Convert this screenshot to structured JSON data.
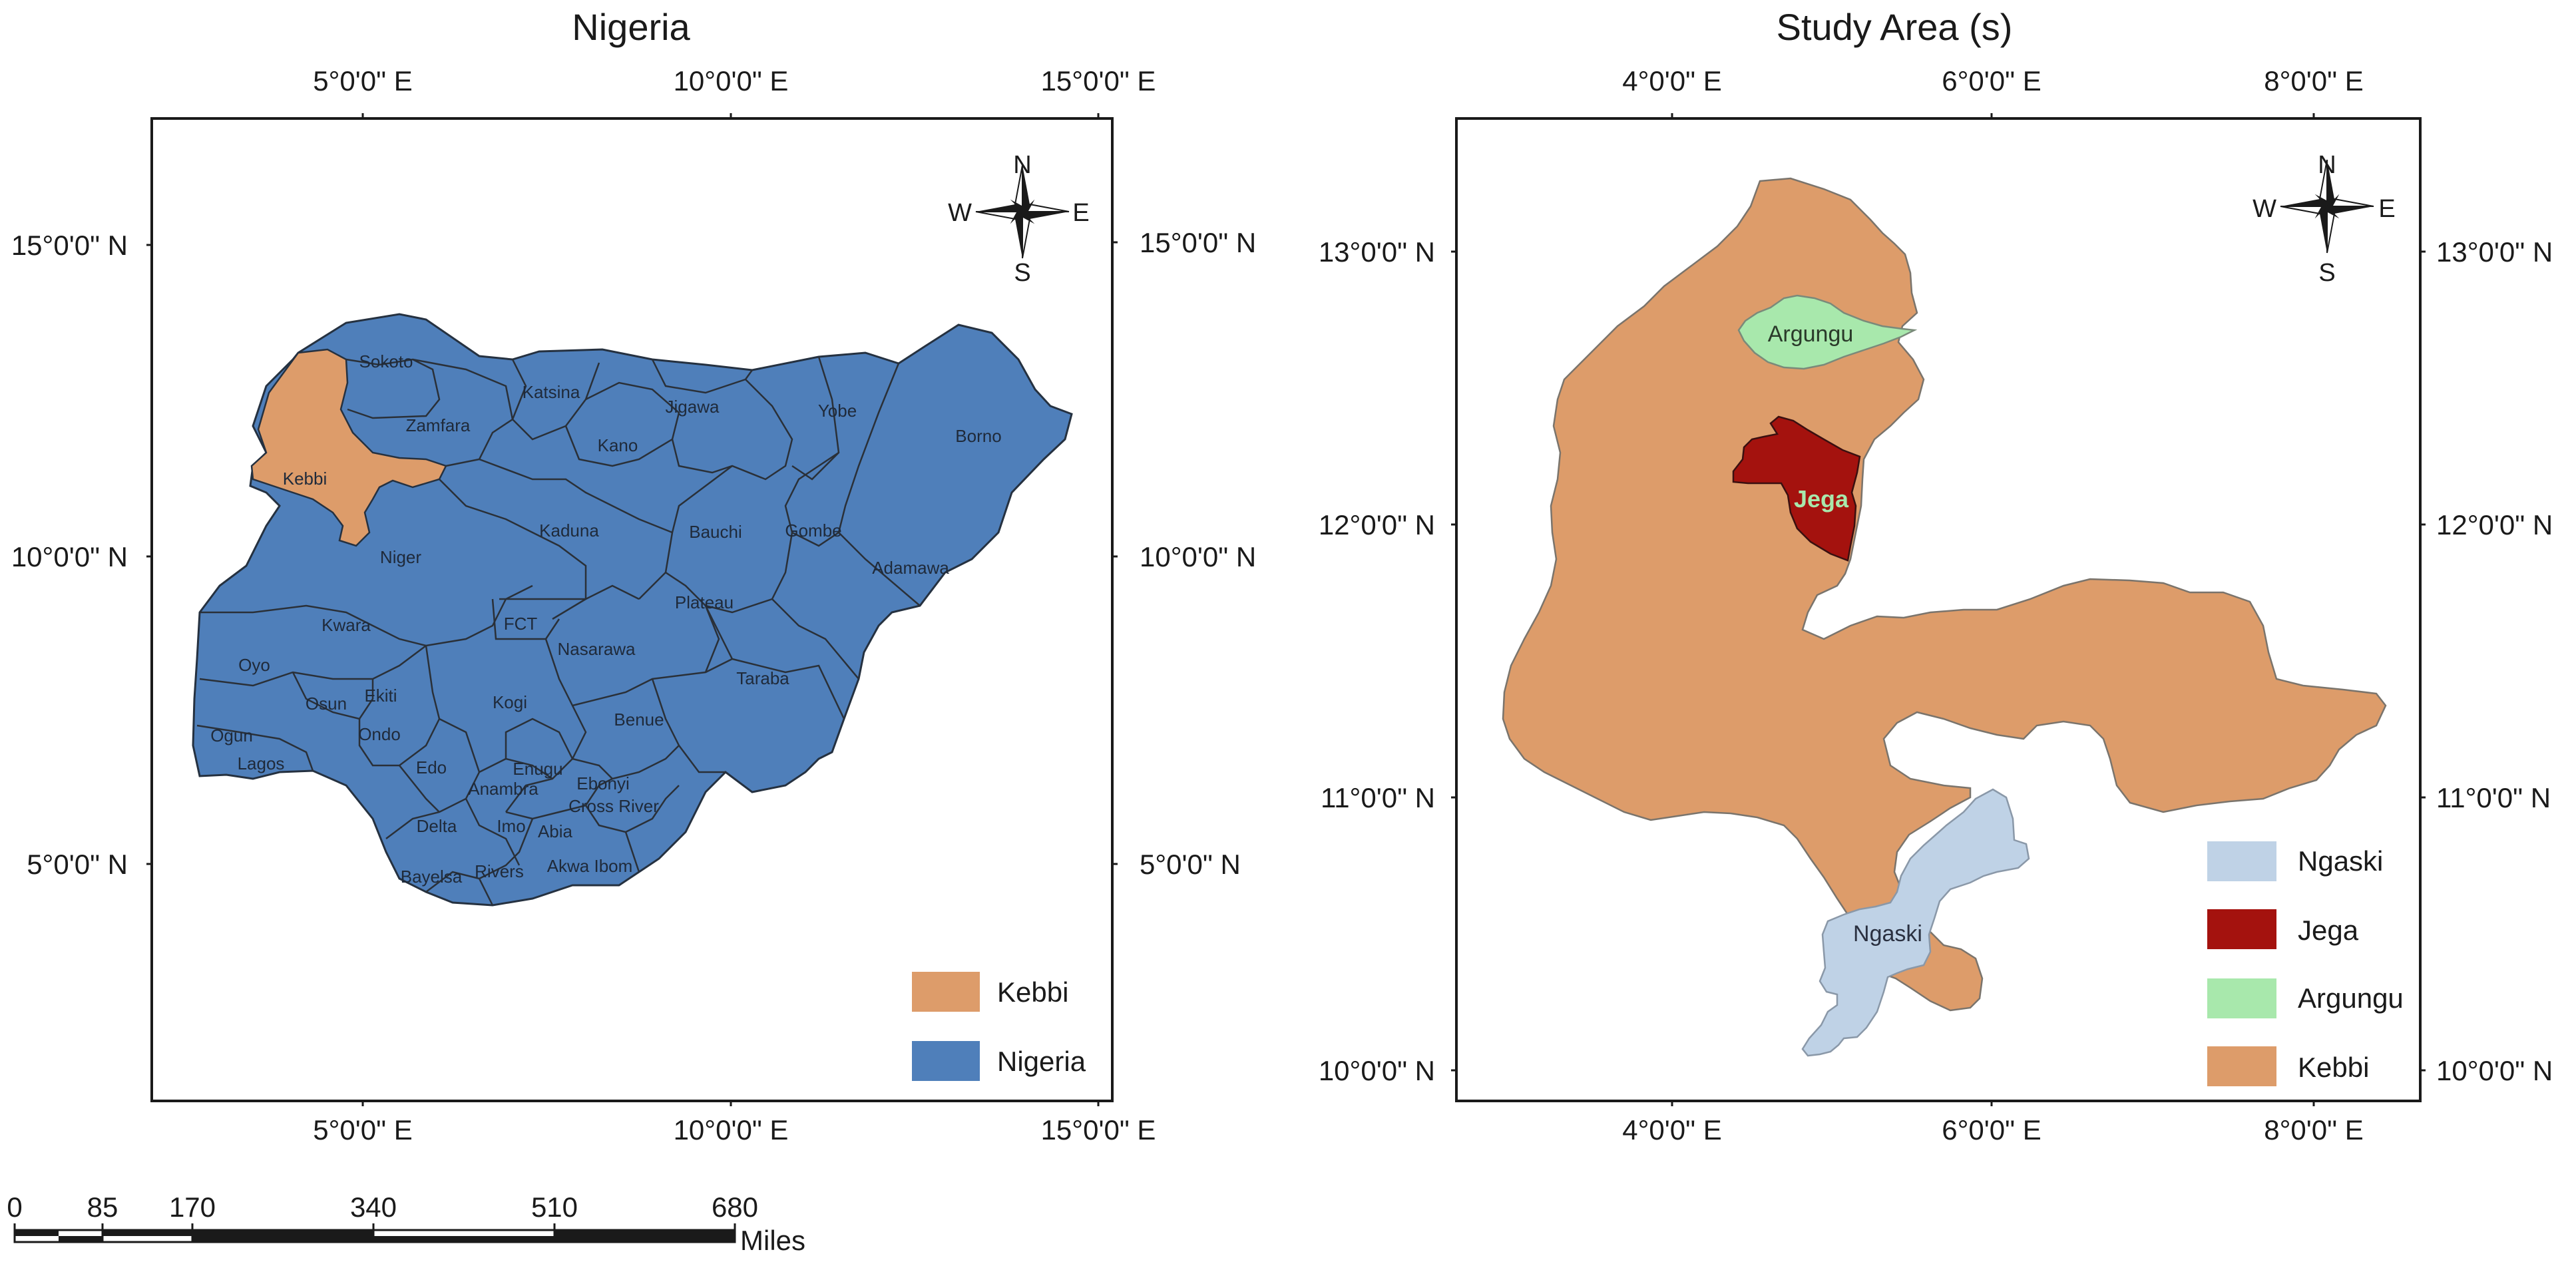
{
  "left_map": {
    "title": "Nigeria",
    "top_ticks": [
      "5°0'0\" E",
      "10°0'0\" E",
      "15°0'0\" E"
    ],
    "bottom_ticks": [
      "5°0'0\" E",
      "10°0'0\" E",
      "15°0'0\" E"
    ],
    "left_ticks": [
      "15°0'0\" N",
      "10°0'0\" N",
      "5°0'0\" N"
    ],
    "right_ticks": [
      "15°0'0\" N",
      "10°0'0\" N",
      "5°0'0\" N"
    ],
    "states": [
      "Sokoto",
      "Katsina",
      "Jigawa",
      "Yobe",
      "Borno",
      "Zamfara",
      "Kano",
      "Kebbi",
      "Kaduna",
      "Bauchi",
      "Gombe",
      "Niger",
      "Adamawa",
      "FCT",
      "Plateau",
      "Kwara",
      "Nasarawa",
      "Oyo",
      "Taraba",
      "Osun",
      "Ekiti",
      "Kogi",
      "Benue",
      "Ogun",
      "Ondo",
      "Lagos",
      "Edo",
      "Enugu",
      "Ebonyi",
      "Anambra",
      "Cross River",
      "Delta",
      "Imo",
      "Abia",
      "Rivers",
      "Akwa Ibom",
      "Bayelsa"
    ],
    "legend": [
      {
        "label": "Kebbi",
        "color": "#dd9c6a"
      },
      {
        "label": "Nigeria",
        "color": "#4f7fba"
      }
    ]
  },
  "right_map": {
    "title": "Study Area (s)",
    "top_ticks": [
      "4°0'0\" E",
      "6°0'0\" E",
      "8°0'0\" E"
    ],
    "bottom_ticks": [
      "4°0'0\" E",
      "6°0'0\" E",
      "8°0'0\" E"
    ],
    "left_ticks": [
      "13°0'0\" N",
      "12°0'0\" N",
      "11°0'0\" N",
      "10°0'0\" N"
    ],
    "right_ticks": [
      "13°0'0\" N",
      "12°0'0\" N",
      "11°0'0\" N",
      "10°0'0\" N"
    ],
    "region_labels": {
      "argungu": "Argungu",
      "jega": "Jega",
      "ngaski": "Ngaski"
    },
    "legend": [
      {
        "label": "Ngaski",
        "color": "#bfd2e6"
      },
      {
        "label": "Jega",
        "color": "#a4120e"
      },
      {
        "label": "Argungu",
        "color": "#a8e8ac"
      },
      {
        "label": "Kebbi",
        "color": "#dd9c6a"
      }
    ]
  },
  "compass": {
    "n": "N",
    "s": "S",
    "e": "E",
    "w": "W"
  },
  "scale_bar": {
    "ticks": [
      "0",
      "85",
      "170",
      "340",
      "510",
      "680"
    ],
    "unit": "Miles"
  }
}
